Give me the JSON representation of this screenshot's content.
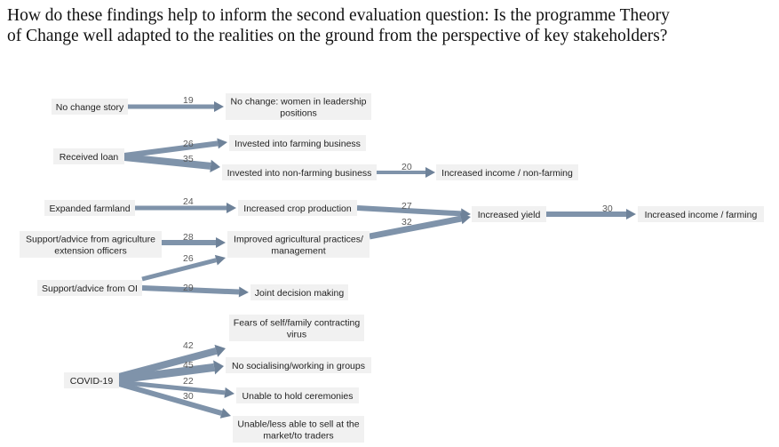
{
  "question": {
    "line1": "How do these findings help to inform the second evaluation question: Is the programme Theory",
    "line2": "of Change well adapted to the realities on the ground from the perspective of key stakeholders?"
  },
  "colors": {
    "flow": "#7f93aa",
    "flow_dark": "#6e8299",
    "box": "#f1f1f1"
  },
  "nodes": {
    "no_change_story": [
      "No change story"
    ],
    "no_change_women": [
      "No change: women in leadership",
      "positions"
    ],
    "received_loan": [
      "Received loan"
    ],
    "invested_farming": [
      "Invested into farming business"
    ],
    "invested_non_farming": [
      "Invested into non-farming business"
    ],
    "income_non_farming": [
      "Increased income / non-farming"
    ],
    "expanded_farmland": [
      "Expanded farmland"
    ],
    "crop_production": [
      "Increased crop production"
    ],
    "increased_yield": [
      "Increased yield"
    ],
    "income_farming": [
      "Increased income / farming"
    ],
    "support_agri": [
      "Support/advice from agriculture",
      "extension officers"
    ],
    "improved_practices": [
      "Improved agricultural practices/",
      "management"
    ],
    "support_oi": [
      "Support/advice from OI"
    ],
    "joint_decision": [
      "Joint decision making"
    ],
    "fears_virus": [
      "Fears of self/family contracting",
      "virus"
    ],
    "covid": [
      "COVID-19"
    ],
    "no_socialising": [
      "No socialising/working in groups"
    ],
    "ceremonies": [
      "Unable to hold ceremonies"
    ],
    "sell_market": [
      "Unable/less able to sell at the",
      "market/to traders"
    ]
  },
  "links": [
    {
      "id": "nochange",
      "value": "19"
    },
    {
      "id": "loan-farm",
      "value": "26"
    },
    {
      "id": "loan-nonfarm",
      "value": "35"
    },
    {
      "id": "nonfarm-income",
      "value": "20"
    },
    {
      "id": "farmland-crop",
      "value": "24"
    },
    {
      "id": "crop-yield",
      "value": "27"
    },
    {
      "id": "practices-yield",
      "value": "32"
    },
    {
      "id": "yield-income",
      "value": "30"
    },
    {
      "id": "agri-practices",
      "value": "28"
    },
    {
      "id": "oi-practices",
      "value": "26"
    },
    {
      "id": "oi-joint",
      "value": "29"
    },
    {
      "id": "covid-fears",
      "value": "42"
    },
    {
      "id": "covid-social",
      "value": "45"
    },
    {
      "id": "covid-ceremonies",
      "value": "22"
    },
    {
      "id": "covid-sell",
      "value": "30"
    }
  ]
}
